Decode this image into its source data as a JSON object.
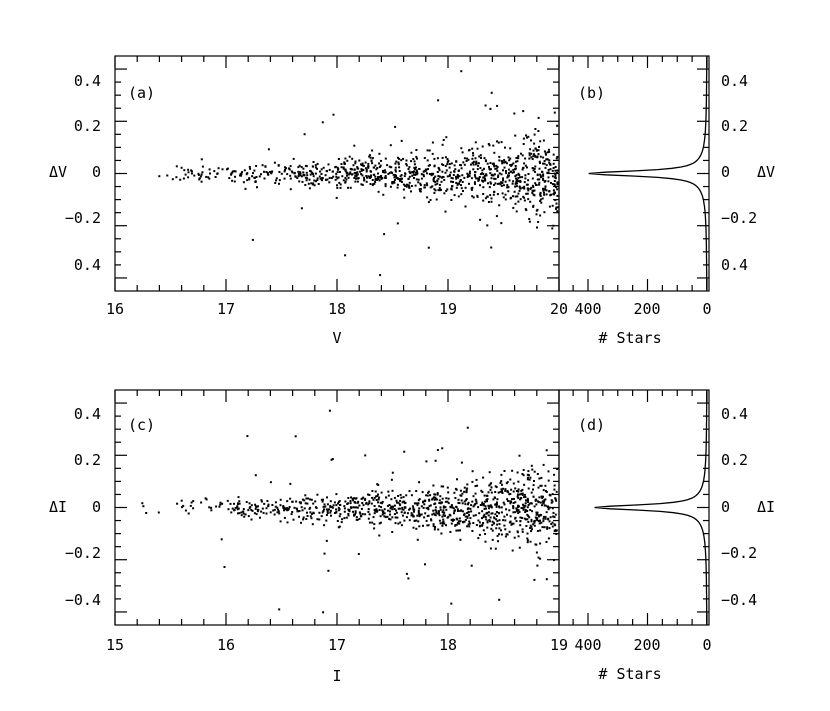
{
  "chart_data": [
    {
      "type": "scatter",
      "panel_label": "(a)",
      "xlabel": "V",
      "ylabel": "ΔV",
      "xlim": [
        16,
        20
      ],
      "ylim": [
        -0.45,
        0.45
      ],
      "x_tick_labels": [
        "16",
        "17",
        "18",
        "19",
        "20"
      ],
      "y_tick_labels": [
        "0.4",
        "0.2",
        "0",
        "−0.2",
        "0.4"
      ],
      "points_described": "magnitude difference ΔV versus V for individual stars; scatter near zero, widening toward faint magnitudes (V≈19.5–20)"
    },
    {
      "type": "line",
      "panel_label": "(b)",
      "xlabel": "# Stars",
      "ylabel": "ΔV",
      "xlim": [
        400,
        0
      ],
      "ylim": [
        -0.45,
        0.45
      ],
      "x_tick_labels": [
        "400",
        "200",
        "0"
      ],
      "y_tick_labels": [
        "0.4",
        "0.2",
        "0",
        "−0.2",
        "0.4"
      ],
      "histogram_described": "distribution of ΔV, sharply peaked at 0 with peak of about 380 stars"
    },
    {
      "type": "scatter",
      "panel_label": "(c)",
      "xlabel": "I",
      "ylabel": "ΔI",
      "xlim": [
        15,
        19
      ],
      "ylim": [
        -0.45,
        0.45
      ],
      "x_tick_labels": [
        "15",
        "16",
        "17",
        "18",
        "19"
      ],
      "y_tick_labels": [
        "0.4",
        "0.2",
        "0",
        "−0.2",
        "−0.4"
      ],
      "points_described": "magnitude difference ΔI versus I for individual stars; scatter near zero, widening toward faint magnitudes (I≈18.5–19)"
    },
    {
      "type": "line",
      "panel_label": "(d)",
      "xlabel": "# Stars",
      "ylabel": "ΔI",
      "xlim": [
        400,
        0
      ],
      "ylim": [
        -0.45,
        0.45
      ],
      "x_tick_labels": [
        "400",
        "200",
        "0"
      ],
      "y_tick_labels": [
        "0.4",
        "0.2",
        "0",
        "−0.2",
        "−0.4"
      ],
      "histogram_described": "distribution of ΔI, sharply peaked at 0 with peak of about 360 stars"
    }
  ]
}
